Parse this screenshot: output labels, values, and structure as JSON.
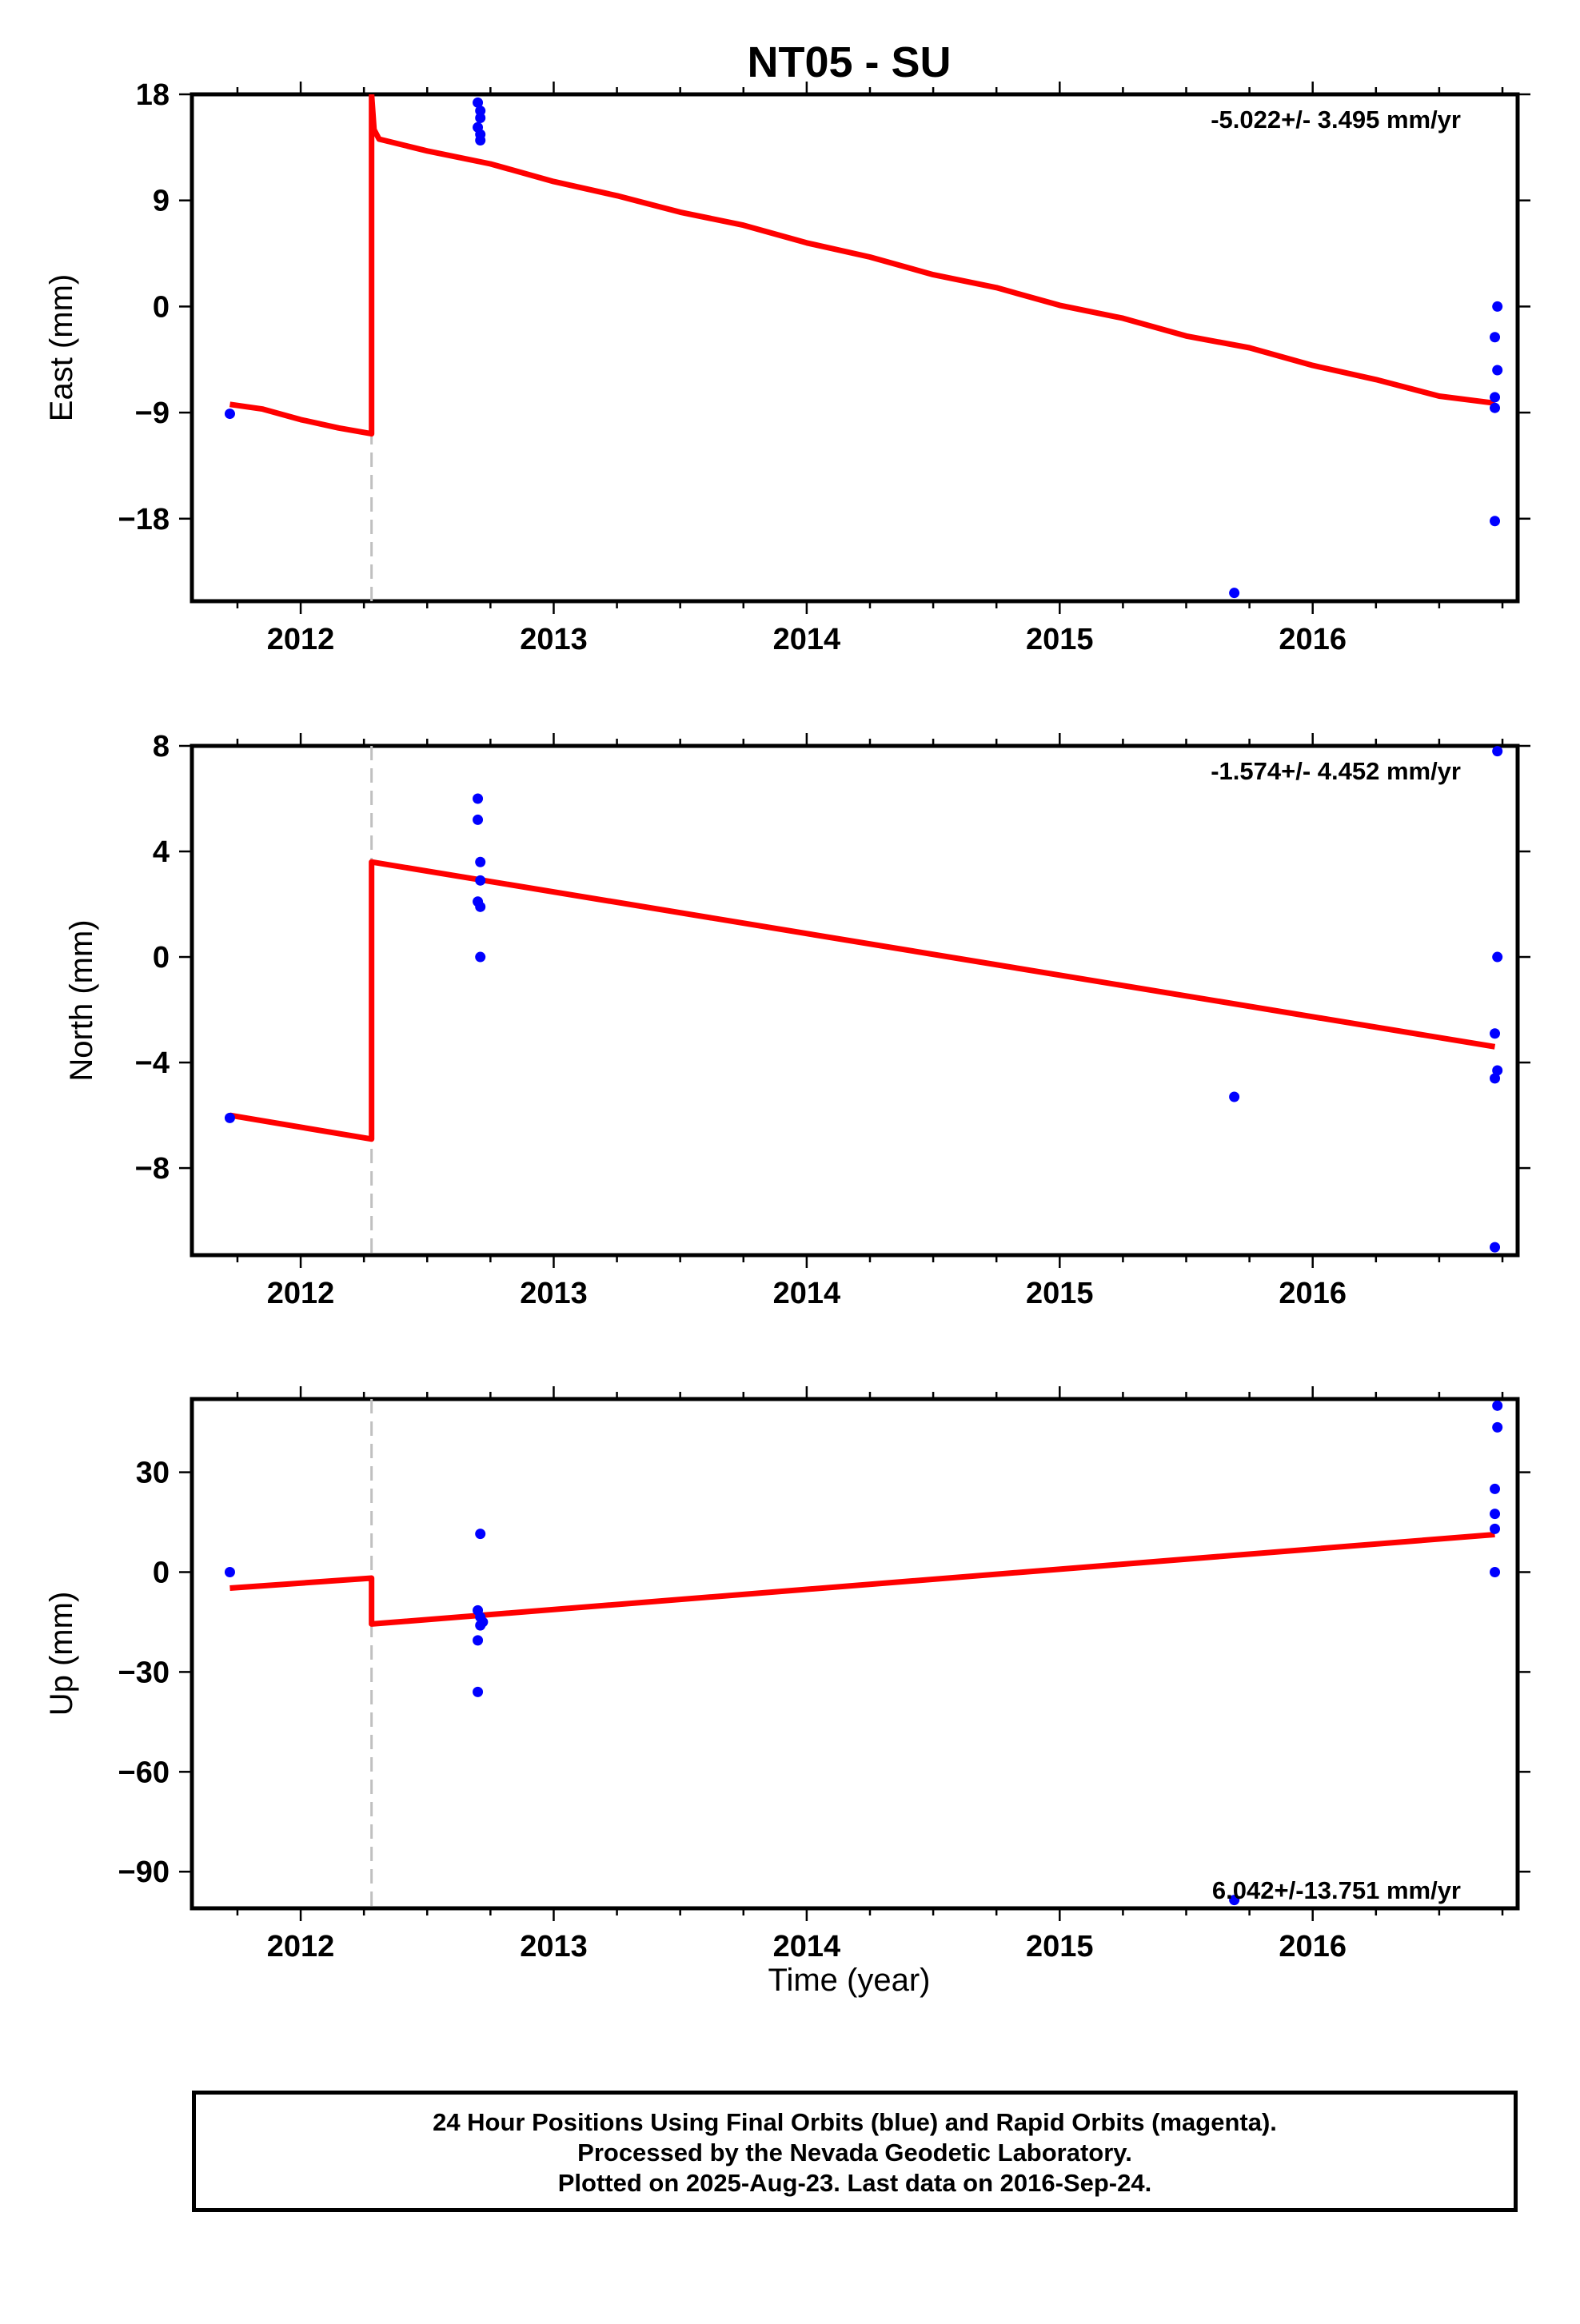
{
  "title": "NT05 - SU",
  "xlabel": "Time (year)",
  "footer": {
    "line1": "24 Hour Positions Using Final Orbits (blue) and Rapid Orbits (magenta).",
    "line2": "Processed by the Nevada Geodetic Laboratory.",
    "line3": "Plotted on 2025-Aug-23. Last data on 2016-Sep-24."
  },
  "colors": {
    "data": "#0000ff",
    "model": "#ff0000",
    "event": "#c0c0c0",
    "frame": "#000000"
  },
  "chart_data": [
    {
      "type": "scatter",
      "name": "east",
      "ylabel": "East (mm)",
      "rate_label": "-5.022+/- 3.495 mm/yr",
      "xlim": [
        2011.57,
        2016.81
      ],
      "ylim": [
        -25,
        18
      ],
      "yticks": [
        -18,
        -9,
        0,
        9,
        18
      ],
      "xticks": [
        2012,
        2013,
        2014,
        2015,
        2016
      ],
      "grid": false,
      "event_x": 2012.28,
      "points": [
        [
          2011.72,
          -9.1
        ],
        [
          2012.7,
          17.3
        ],
        [
          2012.71,
          16.6
        ],
        [
          2012.71,
          16.0
        ],
        [
          2012.7,
          15.2
        ],
        [
          2012.71,
          14.6
        ],
        [
          2012.71,
          14.1
        ],
        [
          2015.69,
          -24.3
        ],
        [
          2016.73,
          0.0
        ],
        [
          2016.72,
          -2.6
        ],
        [
          2016.73,
          -5.4
        ],
        [
          2016.72,
          -7.7
        ],
        [
          2016.72,
          -8.6
        ],
        [
          2016.72,
          -18.2
        ]
      ],
      "model": [
        [
          2011.72,
          -8.3
        ],
        [
          2011.85,
          -8.7
        ],
        [
          2012.0,
          -9.6
        ],
        [
          2012.15,
          -10.3
        ],
        [
          2012.28,
          -10.8
        ],
        [
          2012.28,
          18.0
        ],
        [
          2012.29,
          15.0
        ],
        [
          2012.31,
          14.2
        ],
        [
          2012.5,
          13.2
        ],
        [
          2012.75,
          12.1
        ],
        [
          2013.0,
          10.6
        ],
        [
          2013.25,
          9.4
        ],
        [
          2013.5,
          8.0
        ],
        [
          2013.75,
          6.9
        ],
        [
          2014.0,
          5.4
        ],
        [
          2014.25,
          4.2
        ],
        [
          2014.5,
          2.7
        ],
        [
          2014.75,
          1.6
        ],
        [
          2015.0,
          0.1
        ],
        [
          2015.25,
          -1.0
        ],
        [
          2015.5,
          -2.5
        ],
        [
          2015.75,
          -3.5
        ],
        [
          2016.0,
          -5.0
        ],
        [
          2016.25,
          -6.2
        ],
        [
          2016.5,
          -7.6
        ],
        [
          2016.72,
          -8.2
        ]
      ]
    },
    {
      "type": "scatter",
      "name": "north",
      "ylabel": "North (mm)",
      "rate_label": "-1.574+/- 4.452 mm/yr",
      "xlim": [
        2011.57,
        2016.81
      ],
      "ylim": [
        -11.3,
        8
      ],
      "yticks": [
        -8,
        -4,
        0,
        4,
        8
      ],
      "xticks": [
        2012,
        2013,
        2014,
        2015,
        2016
      ],
      "grid": false,
      "event_x": 2012.28,
      "points": [
        [
          2011.72,
          -6.1
        ],
        [
          2012.7,
          6.0
        ],
        [
          2012.7,
          5.2
        ],
        [
          2012.71,
          3.6
        ],
        [
          2012.71,
          2.9
        ],
        [
          2012.7,
          2.1
        ],
        [
          2012.71,
          1.9
        ],
        [
          2012.71,
          0.0
        ],
        [
          2015.69,
          -5.3
        ],
        [
          2016.73,
          7.8
        ],
        [
          2016.73,
          0.0
        ],
        [
          2016.72,
          -2.9
        ],
        [
          2016.73,
          -4.3
        ],
        [
          2016.72,
          -4.6
        ],
        [
          2016.72,
          -11.0
        ]
      ],
      "model": [
        [
          2011.72,
          -6.0
        ],
        [
          2012.28,
          -6.9
        ],
        [
          2012.28,
          3.6
        ],
        [
          2016.72,
          -3.4
        ]
      ]
    },
    {
      "type": "scatter",
      "name": "up",
      "ylabel": "Up (mm)",
      "rate_label": "6.042+/-13.751 mm/yr",
      "xlim": [
        2011.57,
        2016.81
      ],
      "ylim": [
        -101,
        52
      ],
      "yticks": [
        -90,
        -60,
        -30,
        0,
        30
      ],
      "xticks": [
        2012,
        2013,
        2014,
        2015,
        2016
      ],
      "grid": false,
      "event_x": 2012.28,
      "points": [
        [
          2011.72,
          0.0
        ],
        [
          2012.71,
          11.5
        ],
        [
          2012.7,
          -11.5
        ],
        [
          2012.71,
          -13.5
        ],
        [
          2012.72,
          -15.0
        ],
        [
          2012.71,
          -16.0
        ],
        [
          2012.7,
          -20.5
        ],
        [
          2012.7,
          -36.0
        ],
        [
          2015.69,
          -98.5
        ],
        [
          2016.73,
          50.0
        ],
        [
          2016.73,
          43.5
        ],
        [
          2016.72,
          25.0
        ],
        [
          2016.72,
          17.5
        ],
        [
          2016.72,
          13.0
        ],
        [
          2016.72,
          0.0
        ]
      ],
      "model": [
        [
          2011.72,
          -4.8
        ],
        [
          2012.28,
          -1.8
        ],
        [
          2012.28,
          -15.6
        ],
        [
          2016.72,
          11.3
        ]
      ]
    }
  ]
}
